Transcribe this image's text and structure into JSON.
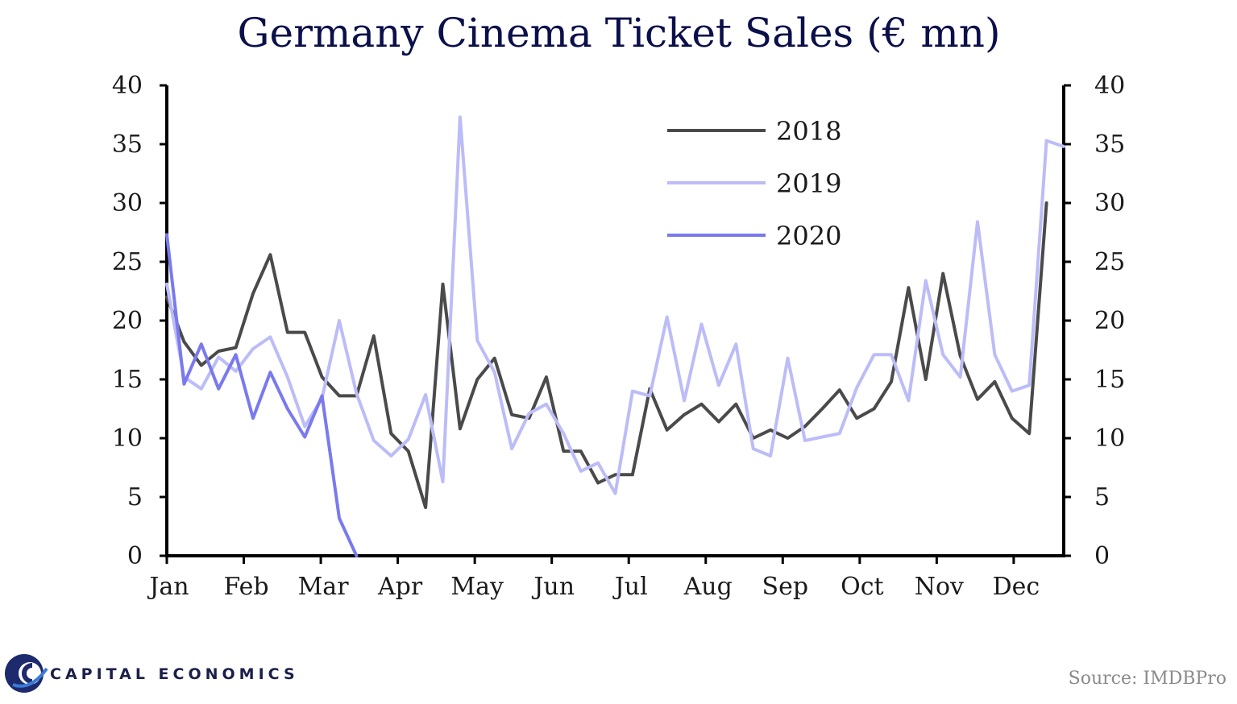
{
  "chart_data": {
    "type": "line",
    "title": "Germany Cinema Ticket Sales (€ mn)",
    "xlabel": "",
    "ylabel": "",
    "ylim": [
      0,
      40
    ],
    "yticks": [
      0,
      5,
      10,
      15,
      20,
      25,
      30,
      35,
      40
    ],
    "month_labels": [
      "Jan",
      "Feb",
      "Mar",
      "Apr",
      "May",
      "Jun",
      "Jul",
      "Aug",
      "Sep",
      "Oct",
      "Nov",
      "Dec"
    ],
    "series": [
      {
        "name": "2018",
        "color": "#4a4a4a",
        "values": [
          22.0,
          18.2,
          16.2,
          17.4,
          17.7,
          22.3,
          25.6,
          19.0,
          19.0,
          15.2,
          13.6,
          13.6,
          18.7,
          10.4,
          8.9,
          4.1,
          23.1,
          10.8,
          15.0,
          16.8,
          12.0,
          11.7,
          15.2,
          8.9,
          8.9,
          6.2,
          6.9,
          6.9,
          14.2,
          10.7,
          12.0,
          12.9,
          11.4,
          12.9,
          10.0,
          10.7,
          10.0,
          11.0,
          12.5,
          14.1,
          11.7,
          12.5,
          14.8,
          22.8,
          15.0,
          24.0,
          17.0,
          13.3,
          14.8,
          11.7,
          10.4,
          30.0
        ]
      },
      {
        "name": "2019",
        "color": "#bcbcf8",
        "values": [
          23.1,
          15.2,
          14.2,
          16.9,
          15.7,
          17.6,
          18.6,
          15.2,
          11.0,
          13.4,
          20.0,
          13.8,
          9.8,
          8.5,
          9.9,
          13.7,
          6.3,
          37.3,
          18.3,
          15.6,
          9.1,
          12.1,
          12.9,
          10.4,
          7.2,
          7.9,
          5.3,
          14.0,
          13.6,
          20.3,
          13.2,
          19.7,
          14.5,
          18.0,
          9.1,
          8.5,
          16.8,
          9.8,
          10.1,
          10.4,
          14.3,
          17.1,
          17.1,
          13.2,
          23.4,
          17.1,
          15.2,
          28.4,
          17.1,
          14.0,
          14.5,
          35.3,
          34.8
        ]
      },
      {
        "name": "2020",
        "color": "#7a7aee",
        "values": [
          27.3,
          14.6,
          18.0,
          14.2,
          17.1,
          11.7,
          15.6,
          12.5,
          10.1,
          13.6,
          3.2,
          0.0
        ]
      }
    ]
  },
  "footer": {
    "brand": "CAPITAL ECONOMICS",
    "source": "Source: IMDBPro"
  }
}
